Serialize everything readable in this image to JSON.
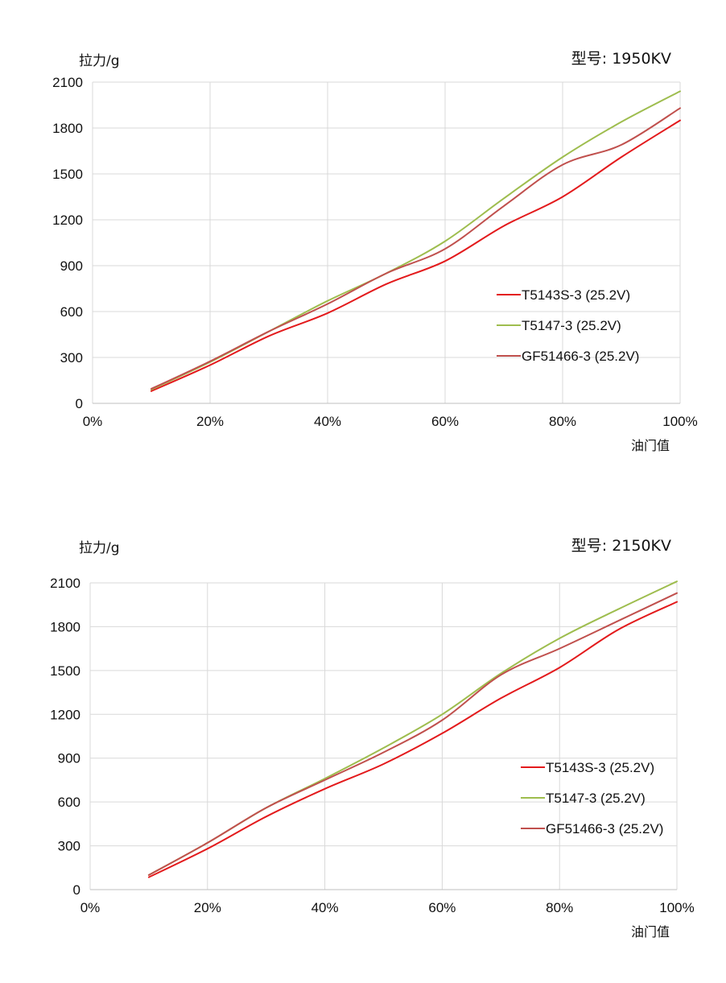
{
  "chart_data": [
    {
      "type": "line",
      "ylabel": "拉力/g",
      "xlabel": "油门值",
      "model_label": "型号:",
      "model_value": "1950KV",
      "x_ticks": [
        "0%",
        "20%",
        "40%",
        "60%",
        "80%",
        "100%"
      ],
      "y_ticks": [
        "0",
        "300",
        "600",
        "900",
        "1200",
        "1500",
        "1800",
        "2100"
      ],
      "xlim": [
        0,
        100
      ],
      "ylim": [
        0,
        2100
      ],
      "grid": true,
      "legend_position": "center-right",
      "x": [
        10,
        20,
        30,
        40,
        50,
        60,
        70,
        80,
        90,
        100
      ],
      "series": [
        {
          "name": "T5143S-3 (25.2V)",
          "color": "#e31a1c",
          "values": [
            80,
            250,
            440,
            590,
            780,
            930,
            1160,
            1350,
            1610,
            1850
          ]
        },
        {
          "name": "T5147-3 (25.2V)",
          "color": "#9ebd4e",
          "values": [
            90,
            270,
            470,
            670,
            850,
            1060,
            1340,
            1610,
            1840,
            2040
          ]
        },
        {
          "name": "GF51466-3 (25.2V)",
          "color": "#c0504d",
          "values": [
            95,
            275,
            470,
            650,
            850,
            1010,
            1290,
            1560,
            1690,
            1930
          ]
        }
      ]
    },
    {
      "type": "line",
      "ylabel": "拉力/g",
      "xlabel": "油门值",
      "model_label": "型号:",
      "model_value": "2150KV",
      "x_ticks": [
        "0%",
        "20%",
        "40%",
        "60%",
        "80%",
        "100%"
      ],
      "y_ticks": [
        "0",
        "300",
        "600",
        "900",
        "1200",
        "1500",
        "1800",
        "2100"
      ],
      "xlim": [
        0,
        100
      ],
      "ylim": [
        0,
        2100
      ],
      "grid": true,
      "legend_position": "center-right",
      "x": [
        10,
        20,
        30,
        40,
        50,
        60,
        70,
        80,
        90,
        100
      ],
      "series": [
        {
          "name": "T5143S-3 (25.2V)",
          "color": "#e31a1c",
          "values": [
            85,
            280,
            500,
            690,
            860,
            1070,
            1310,
            1520,
            1780,
            1970
          ]
        },
        {
          "name": "T5147-3 (25.2V)",
          "color": "#9ebd4e",
          "values": [
            100,
            320,
            560,
            760,
            970,
            1200,
            1480,
            1720,
            1920,
            2110
          ]
        },
        {
          "name": "GF51466-3 (25.2V)",
          "color": "#c0504d",
          "values": [
            100,
            320,
            560,
            750,
            940,
            1160,
            1470,
            1650,
            1840,
            2030
          ]
        }
      ]
    }
  ]
}
